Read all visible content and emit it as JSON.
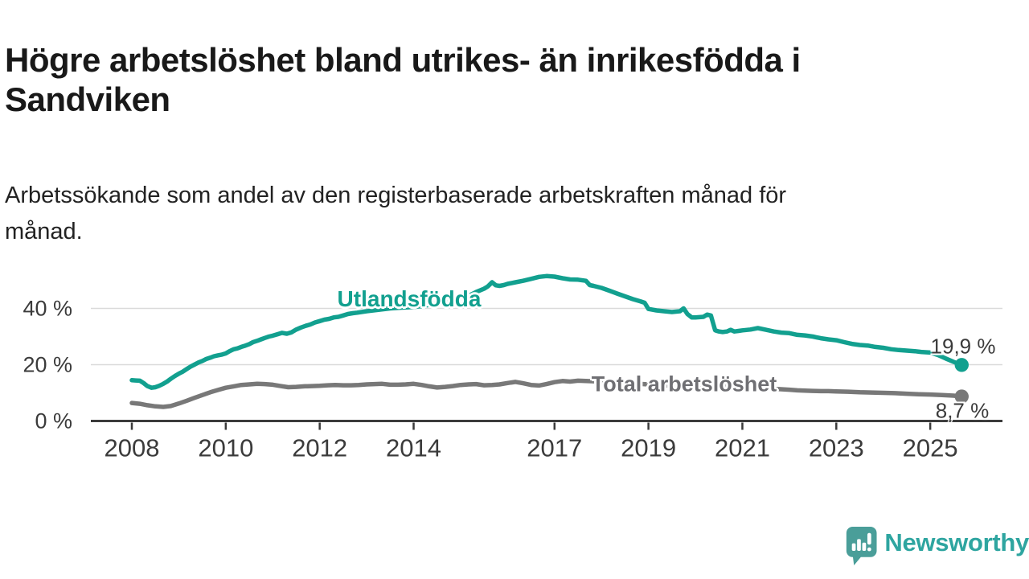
{
  "header": {
    "title_line1": "Högre arbetslöshet bland utrikes- än inrikesfödda i",
    "title_line2": "Sandviken",
    "subtitle_line1": "Arbetssökande som andel av den registerbaserade arbetskraften månad för",
    "subtitle_line2": "månad."
  },
  "chart_data": {
    "type": "line",
    "title": "Högre arbetslöshet bland utrikes- än inrikesfödda i Sandviken",
    "subtitle": "Arbetssökande som andel av den registerbaserade arbetskraften månad för månad.",
    "unit": "%",
    "grid": true,
    "legend_position": "inline-labels-on-lines",
    "x_range": [
      2008,
      2025.67
    ],
    "y_range": [
      0,
      55
    ],
    "x_axis": {
      "ticks": [
        2008,
        2010,
        2012,
        2014,
        2017,
        2019,
        2021,
        2023,
        2025
      ],
      "labels": [
        "2008",
        "2010",
        "2012",
        "2014",
        "2017",
        "2019",
        "2021",
        "2023",
        "2025"
      ]
    },
    "y_axis": {
      "ticks": [
        0,
        20,
        40
      ],
      "labels": [
        "0 %",
        "20 %",
        "40 %"
      ]
    },
    "series": [
      {
        "id": "utlandsfodda",
        "label": "Utlandsfödda",
        "color": "#12A08F",
        "end_label": "19,9 %",
        "end_value": 19.9,
        "points": [
          [
            2008.0,
            14.5
          ],
          [
            2008.08,
            14.4
          ],
          [
            2008.17,
            14.3
          ],
          [
            2008.25,
            13.5
          ],
          [
            2008.33,
            12.4
          ],
          [
            2008.42,
            11.8
          ],
          [
            2008.5,
            12.0
          ],
          [
            2008.58,
            12.5
          ],
          [
            2008.67,
            13.2
          ],
          [
            2008.75,
            14.0
          ],
          [
            2008.83,
            15.0
          ],
          [
            2008.92,
            16.0
          ],
          [
            2009.0,
            16.8
          ],
          [
            2009.08,
            17.5
          ],
          [
            2009.17,
            18.5
          ],
          [
            2009.25,
            19.3
          ],
          [
            2009.33,
            20.0
          ],
          [
            2009.42,
            20.8
          ],
          [
            2009.5,
            21.3
          ],
          [
            2009.58,
            22.0
          ],
          [
            2009.67,
            22.5
          ],
          [
            2009.75,
            23.0
          ],
          [
            2009.83,
            23.3
          ],
          [
            2009.92,
            23.6
          ],
          [
            2010.0,
            24.0
          ],
          [
            2010.08,
            24.8
          ],
          [
            2010.17,
            25.5
          ],
          [
            2010.25,
            25.8
          ],
          [
            2010.33,
            26.3
          ],
          [
            2010.42,
            26.8
          ],
          [
            2010.5,
            27.3
          ],
          [
            2010.58,
            28.0
          ],
          [
            2010.67,
            28.5
          ],
          [
            2010.75,
            29.0
          ],
          [
            2010.83,
            29.5
          ],
          [
            2010.92,
            30.0
          ],
          [
            2011.0,
            30.3
          ],
          [
            2011.1,
            30.8
          ],
          [
            2011.2,
            31.3
          ],
          [
            2011.3,
            31.0
          ],
          [
            2011.4,
            31.5
          ],
          [
            2011.5,
            32.5
          ],
          [
            2011.6,
            33.2
          ],
          [
            2011.7,
            33.8
          ],
          [
            2011.8,
            34.3
          ],
          [
            2011.9,
            35.0
          ],
          [
            2012.0,
            35.5
          ],
          [
            2012.1,
            36.0
          ],
          [
            2012.2,
            36.3
          ],
          [
            2012.3,
            36.8
          ],
          [
            2012.4,
            37.0
          ],
          [
            2012.5,
            37.5
          ],
          [
            2012.6,
            38.0
          ],
          [
            2012.7,
            38.3
          ],
          [
            2012.8,
            38.5
          ],
          [
            2013.0,
            39.0
          ],
          [
            2013.25,
            39.5
          ],
          [
            2013.5,
            40.0
          ],
          [
            2013.75,
            40.3
          ],
          [
            2014.0,
            40.5
          ],
          [
            2014.25,
            41.0
          ],
          [
            2014.5,
            41.8
          ],
          [
            2014.75,
            42.5
          ],
          [
            2015.0,
            43.5
          ],
          [
            2015.17,
            44.5
          ],
          [
            2015.33,
            45.8
          ],
          [
            2015.5,
            47.0
          ],
          [
            2015.58,
            47.8
          ],
          [
            2015.67,
            49.3
          ],
          [
            2015.75,
            48.2
          ],
          [
            2015.83,
            48.0
          ],
          [
            2015.92,
            48.3
          ],
          [
            2016.0,
            48.7
          ],
          [
            2016.17,
            49.3
          ],
          [
            2016.33,
            49.8
          ],
          [
            2016.5,
            50.5
          ],
          [
            2016.67,
            51.2
          ],
          [
            2016.83,
            51.5
          ],
          [
            2017.0,
            51.3
          ],
          [
            2017.17,
            50.7
          ],
          [
            2017.33,
            50.3
          ],
          [
            2017.5,
            50.2
          ],
          [
            2017.67,
            49.8
          ],
          [
            2017.75,
            48.3
          ],
          [
            2017.83,
            48.0
          ],
          [
            2018.0,
            47.3
          ],
          [
            2018.17,
            46.3
          ],
          [
            2018.33,
            45.3
          ],
          [
            2018.5,
            44.3
          ],
          [
            2018.67,
            43.3
          ],
          [
            2018.83,
            42.5
          ],
          [
            2018.92,
            42.0
          ],
          [
            2019.0,
            39.8
          ],
          [
            2019.17,
            39.3
          ],
          [
            2019.33,
            39.0
          ],
          [
            2019.5,
            38.7
          ],
          [
            2019.67,
            39.0
          ],
          [
            2019.75,
            40.0
          ],
          [
            2019.83,
            38.0
          ],
          [
            2019.92,
            36.8
          ],
          [
            2020.0,
            36.8
          ],
          [
            2020.17,
            37.0
          ],
          [
            2020.25,
            37.8
          ],
          [
            2020.33,
            37.5
          ],
          [
            2020.42,
            32.2
          ],
          [
            2020.5,
            31.8
          ],
          [
            2020.58,
            31.6
          ],
          [
            2020.67,
            31.8
          ],
          [
            2020.75,
            32.4
          ],
          [
            2020.83,
            31.8
          ],
          [
            2020.92,
            32.0
          ],
          [
            2021.0,
            32.2
          ],
          [
            2021.17,
            32.5
          ],
          [
            2021.33,
            33.0
          ],
          [
            2021.5,
            32.4
          ],
          [
            2021.67,
            31.8
          ],
          [
            2021.83,
            31.4
          ],
          [
            2022.0,
            31.2
          ],
          [
            2022.17,
            30.6
          ],
          [
            2022.33,
            30.4
          ],
          [
            2022.5,
            30.0
          ],
          [
            2022.67,
            29.4
          ],
          [
            2022.83,
            29.0
          ],
          [
            2023.0,
            28.7
          ],
          [
            2023.17,
            28.0
          ],
          [
            2023.33,
            27.4
          ],
          [
            2023.5,
            27.0
          ],
          [
            2023.67,
            26.8
          ],
          [
            2023.83,
            26.3
          ],
          [
            2024.0,
            26.0
          ],
          [
            2024.17,
            25.5
          ],
          [
            2024.33,
            25.2
          ],
          [
            2024.5,
            25.0
          ],
          [
            2024.67,
            24.8
          ],
          [
            2024.83,
            24.5
          ],
          [
            2025.0,
            24.3
          ],
          [
            2025.17,
            23.4
          ],
          [
            2025.33,
            22.2
          ],
          [
            2025.5,
            21.0
          ],
          [
            2025.67,
            19.9
          ]
        ]
      },
      {
        "id": "total",
        "label": "Total arbetslöshet",
        "color": "#787878",
        "label_color": "#6F6F73",
        "end_label": "8,7 %",
        "end_value": 8.7,
        "points": [
          [
            2008.0,
            6.4
          ],
          [
            2008.17,
            6.1
          ],
          [
            2008.33,
            5.6
          ],
          [
            2008.5,
            5.2
          ],
          [
            2008.67,
            5.0
          ],
          [
            2008.83,
            5.3
          ],
          [
            2009.0,
            6.2
          ],
          [
            2009.17,
            7.2
          ],
          [
            2009.33,
            8.2
          ],
          [
            2009.5,
            9.2
          ],
          [
            2009.67,
            10.2
          ],
          [
            2009.83,
            11.0
          ],
          [
            2010.0,
            11.8
          ],
          [
            2010.17,
            12.3
          ],
          [
            2010.33,
            12.8
          ],
          [
            2010.5,
            13.0
          ],
          [
            2010.67,
            13.2
          ],
          [
            2010.83,
            13.1
          ],
          [
            2011.0,
            12.9
          ],
          [
            2011.17,
            12.4
          ],
          [
            2011.33,
            12.0
          ],
          [
            2011.5,
            12.1
          ],
          [
            2011.67,
            12.3
          ],
          [
            2011.83,
            12.4
          ],
          [
            2012.0,
            12.5
          ],
          [
            2012.17,
            12.7
          ],
          [
            2012.33,
            12.8
          ],
          [
            2012.5,
            12.7
          ],
          [
            2012.67,
            12.7
          ],
          [
            2012.83,
            12.8
          ],
          [
            2013.0,
            13.0
          ],
          [
            2013.17,
            13.1
          ],
          [
            2013.33,
            13.2
          ],
          [
            2013.5,
            12.9
          ],
          [
            2013.67,
            12.9
          ],
          [
            2013.83,
            13.0
          ],
          [
            2014.0,
            13.2
          ],
          [
            2014.17,
            12.8
          ],
          [
            2014.33,
            12.3
          ],
          [
            2014.5,
            11.9
          ],
          [
            2014.67,
            12.1
          ],
          [
            2014.83,
            12.4
          ],
          [
            2015.0,
            12.8
          ],
          [
            2015.17,
            13.0
          ],
          [
            2015.33,
            13.1
          ],
          [
            2015.5,
            12.7
          ],
          [
            2015.67,
            12.8
          ],
          [
            2015.83,
            13.0
          ],
          [
            2016.0,
            13.5
          ],
          [
            2016.17,
            13.9
          ],
          [
            2016.33,
            13.4
          ],
          [
            2016.5,
            12.8
          ],
          [
            2016.67,
            12.6
          ],
          [
            2016.83,
            13.1
          ],
          [
            2017.0,
            13.8
          ],
          [
            2017.17,
            14.2
          ],
          [
            2017.33,
            14.0
          ],
          [
            2017.5,
            14.3
          ],
          [
            2018.0,
            14.0
          ],
          [
            2018.5,
            13.5
          ],
          [
            2019.0,
            13.0
          ],
          [
            2019.5,
            12.5
          ],
          [
            2020.0,
            12.2
          ],
          [
            2020.5,
            12.5
          ],
          [
            2021.0,
            12.2
          ],
          [
            2021.5,
            11.6
          ],
          [
            2022.0,
            11.1
          ],
          [
            2022.17,
            10.9
          ],
          [
            2022.33,
            10.8
          ],
          [
            2022.5,
            10.7
          ],
          [
            2022.67,
            10.6
          ],
          [
            2022.83,
            10.6
          ],
          [
            2023.0,
            10.5
          ],
          [
            2023.25,
            10.4
          ],
          [
            2023.5,
            10.2
          ],
          [
            2023.75,
            10.1
          ],
          [
            2024.0,
            10.0
          ],
          [
            2024.25,
            9.9
          ],
          [
            2024.5,
            9.7
          ],
          [
            2024.75,
            9.5
          ],
          [
            2025.0,
            9.4
          ],
          [
            2025.25,
            9.2
          ],
          [
            2025.5,
            9.0
          ],
          [
            2025.67,
            8.7
          ]
        ]
      }
    ]
  },
  "footer": {
    "brand": "Newsworthy",
    "brand_color": "#2EA5A0",
    "icon_color": "#4A9E99",
    "icon": "newsworthy-speech-bubble-bar-chart-icon"
  },
  "colors": {
    "axis": "#3B3B3B",
    "grid": "#DADADA",
    "title": "#191919",
    "subtitle": "#222222",
    "annotation": "#3B3B3B"
  }
}
